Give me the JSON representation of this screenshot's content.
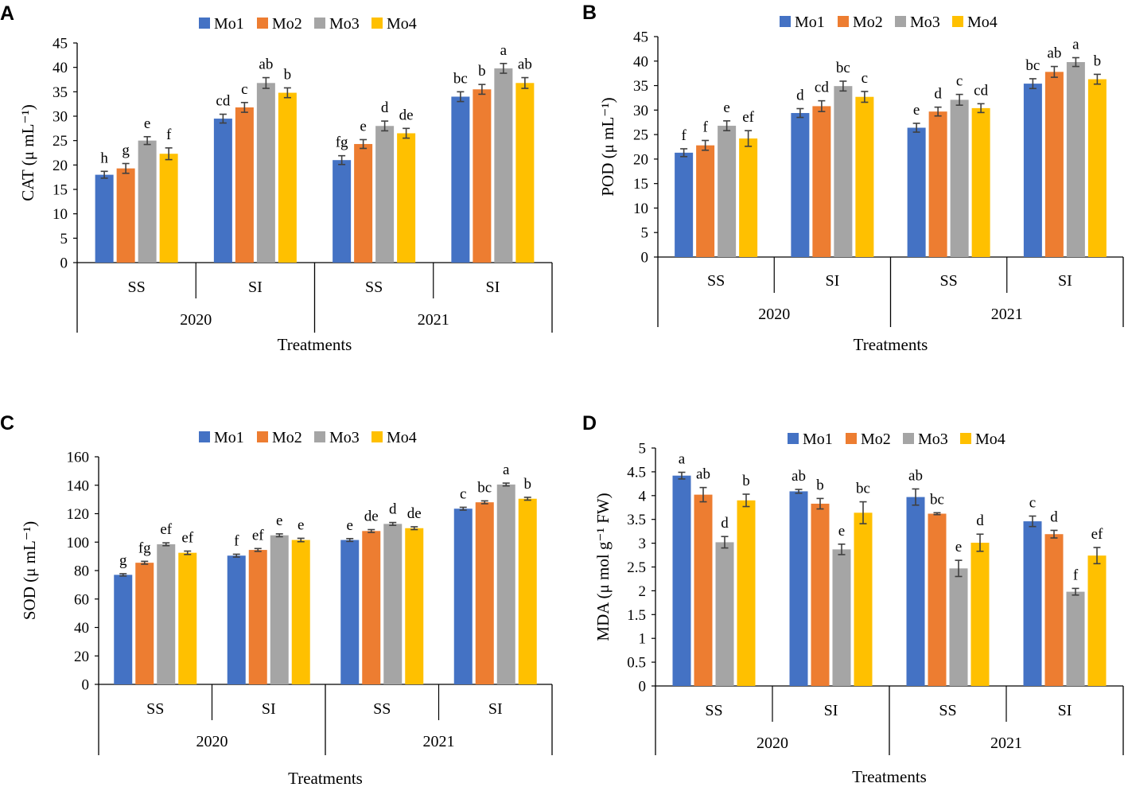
{
  "figure": {
    "series_names": [
      "Mo1",
      "Mo2",
      "Mo3",
      "Mo4"
    ],
    "series_colors": [
      "#4472C4",
      "#ED7D31",
      "#A5A5A5",
      "#FFC000"
    ],
    "error_bar_color": "#404040"
  },
  "chart_data": [
    {
      "type": "bar",
      "panel": "A",
      "title": "",
      "ylabel": "CAT (μ mL⁻¹)",
      "xlabel": "Treatments",
      "ylim": [
        0,
        45
      ],
      "ytick_step": 5,
      "categories": [
        "SS",
        "SI",
        "SS",
        "SI"
      ],
      "groups": [
        {
          "label": "2020",
          "span": [
            0,
            1
          ]
        },
        {
          "label": "2021",
          "span": [
            2,
            3
          ]
        }
      ],
      "series": [
        {
          "name": "Mo1",
          "values": [
            18.0,
            29.5,
            21.0,
            34.0
          ],
          "errors": [
            0.7,
            0.9,
            0.9,
            1.0
          ],
          "letters": [
            "h",
            "cd",
            "fg",
            "bc"
          ]
        },
        {
          "name": "Mo2",
          "values": [
            19.3,
            31.8,
            24.3,
            35.5
          ],
          "errors": [
            1.0,
            1.0,
            0.9,
            1.0
          ],
          "letters": [
            "g",
            "c",
            "e",
            "b"
          ]
        },
        {
          "name": "Mo3",
          "values": [
            25.0,
            36.8,
            28.0,
            39.8
          ],
          "errors": [
            0.8,
            1.1,
            1.0,
            1.0
          ],
          "letters": [
            "e",
            "ab",
            "d",
            "a"
          ]
        },
        {
          "name": "Mo4",
          "values": [
            22.3,
            34.8,
            26.5,
            36.8
          ],
          "errors": [
            1.2,
            1.0,
            1.0,
            1.1
          ],
          "letters": [
            "f",
            "b",
            "de",
            "ab"
          ]
        }
      ]
    },
    {
      "type": "bar",
      "panel": "B",
      "title": "",
      "ylabel": "POD (μ mL⁻¹)",
      "xlabel": "Treatments",
      "ylim": [
        0,
        45
      ],
      "ytick_step": 5,
      "categories": [
        "SS",
        "SI",
        "SS",
        "SI"
      ],
      "groups": [
        {
          "label": "2020",
          "span": [
            0,
            1
          ]
        },
        {
          "label": "2021",
          "span": [
            2,
            3
          ]
        }
      ],
      "series": [
        {
          "name": "Mo1",
          "values": [
            21.3,
            29.4,
            26.4,
            35.4
          ],
          "errors": [
            0.8,
            0.9,
            0.9,
            1.0
          ],
          "letters": [
            "f",
            "d",
            "e",
            "bc"
          ]
        },
        {
          "name": "Mo2",
          "values": [
            22.8,
            30.8,
            29.7,
            37.8
          ],
          "errors": [
            1.0,
            1.1,
            0.9,
            1.1
          ],
          "letters": [
            "f",
            "cd",
            "d",
            "ab"
          ]
        },
        {
          "name": "Mo3",
          "values": [
            26.8,
            34.9,
            32.1,
            39.8
          ],
          "errors": [
            1.0,
            1.0,
            1.1,
            0.9
          ],
          "letters": [
            "e",
            "bc",
            "c",
            "a"
          ]
        },
        {
          "name": "Mo4",
          "values": [
            24.2,
            32.7,
            30.4,
            36.3
          ],
          "errors": [
            1.6,
            1.1,
            0.9,
            1.0
          ],
          "letters": [
            "ef",
            "c",
            "cd",
            "b"
          ]
        }
      ]
    },
    {
      "type": "bar",
      "panel": "C",
      "title": "",
      "ylabel": "SOD  (μ mL⁻¹)",
      "xlabel": "Treatments",
      "ylim": [
        0,
        160
      ],
      "ytick_step": 20,
      "categories": [
        "SS",
        "SI",
        "SS",
        "SI"
      ],
      "groups": [
        {
          "label": "2020",
          "span": [
            0,
            1
          ]
        },
        {
          "label": "2021",
          "span": [
            2,
            3
          ]
        }
      ],
      "series": [
        {
          "name": "Mo1",
          "values": [
            77.0,
            90.5,
            101.5,
            123.5
          ],
          "errors": [
            0.8,
            1.0,
            1.0,
            1.0
          ],
          "letters": [
            "g",
            "f",
            "e",
            "c"
          ]
        },
        {
          "name": "Mo2",
          "values": [
            85.5,
            94.5,
            107.8,
            128.0
          ],
          "errors": [
            1.0,
            1.0,
            1.0,
            1.0
          ],
          "letters": [
            "fg",
            "ef",
            "de",
            "bc"
          ]
        },
        {
          "name": "Mo3",
          "values": [
            98.5,
            104.8,
            112.8,
            140.5
          ],
          "errors": [
            1.0,
            1.0,
            1.0,
            1.0
          ],
          "letters": [
            "ef",
            "e",
            "d",
            "a"
          ]
        },
        {
          "name": "Mo4",
          "values": [
            92.5,
            101.5,
            109.8,
            130.5
          ],
          "errors": [
            1.2,
            1.2,
            1.0,
            1.0
          ],
          "letters": [
            "ef",
            "e",
            "de",
            "b"
          ]
        }
      ]
    },
    {
      "type": "bar",
      "panel": "D",
      "title": "",
      "ylabel": "MDA (μ mol g⁻¹ FW)",
      "xlabel": "Treatments",
      "ylim": [
        0,
        5
      ],
      "ytick_step": 0.5,
      "categories": [
        "SS",
        "SI",
        "SS",
        "SI"
      ],
      "groups": [
        {
          "label": "2020",
          "span": [
            0,
            1
          ]
        },
        {
          "label": "2021",
          "span": [
            2,
            3
          ]
        }
      ],
      "series": [
        {
          "name": "Mo1",
          "values": [
            4.42,
            4.09,
            3.97,
            3.46
          ],
          "errors": [
            0.07,
            0.04,
            0.17,
            0.11
          ],
          "letters": [
            "a",
            "ab",
            "ab",
            "c"
          ]
        },
        {
          "name": "Mo2",
          "values": [
            4.02,
            3.83,
            3.62,
            3.19
          ],
          "errors": [
            0.15,
            0.11,
            0.02,
            0.08
          ],
          "letters": [
            "ab",
            "b",
            "bc",
            "d"
          ]
        },
        {
          "name": "Mo3",
          "values": [
            3.02,
            2.87,
            2.47,
            1.98
          ],
          "errors": [
            0.12,
            0.11,
            0.17,
            0.07
          ],
          "letters": [
            "d",
            "e",
            "e",
            "f"
          ]
        },
        {
          "name": "Mo4",
          "values": [
            3.9,
            3.64,
            3.01,
            2.74
          ],
          "errors": [
            0.13,
            0.23,
            0.18,
            0.17
          ],
          "letters": [
            "b",
            "bc",
            "d",
            "ef"
          ]
        }
      ]
    }
  ]
}
